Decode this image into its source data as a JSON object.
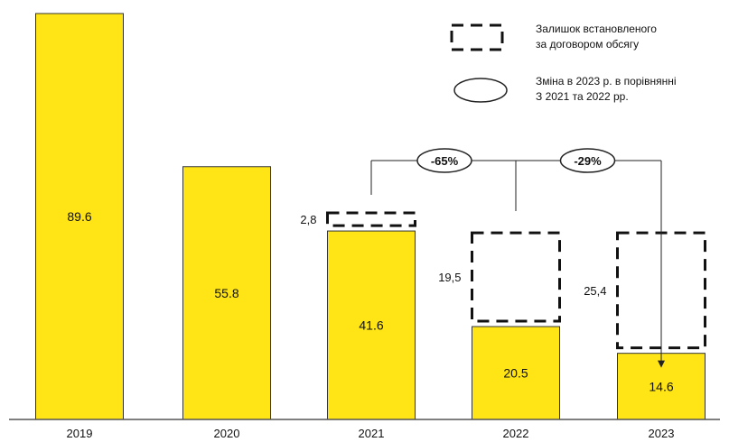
{
  "chart_data": {
    "type": "bar",
    "categories": [
      "2019",
      "2020",
      "2021",
      "2022",
      "2023"
    ],
    "series": [
      {
        "values": [
          89.6,
          55.8,
          41.6,
          20.5,
          14.6
        ],
        "labels": [
          "89.6",
          "55.8",
          "41.6",
          "20.5",
          "14.6"
        ]
      }
    ],
    "remaining": [
      {
        "category": "2021",
        "value": 2.8,
        "label": "2,8"
      },
      {
        "category": "2022",
        "value": 19.5,
        "label": "19,5"
      },
      {
        "category": "2023",
        "value": 25.4,
        "label": "25,4"
      }
    ],
    "changes": [
      {
        "from": "2021",
        "to": "2023",
        "label": "-65%"
      },
      {
        "from": "2022",
        "to": "2023",
        "label": "-29%"
      }
    ],
    "legend": {
      "placement": "top-right",
      "items": [
        {
          "shape": "dashed-rect",
          "lines": [
            "Залишок встановленого",
            "за договором обсягу"
          ]
        },
        {
          "shape": "ellipse",
          "lines": [
            "Зміна в 2023 р. в порівнянні",
            "З 2021 та 2022 рр."
          ]
        }
      ]
    },
    "colors": {
      "bar": "#FFE516",
      "bar_stroke": "#333333",
      "dashed": "#111111"
    },
    "ylim": [
      0,
      89.6
    ],
    "grid": false
  }
}
